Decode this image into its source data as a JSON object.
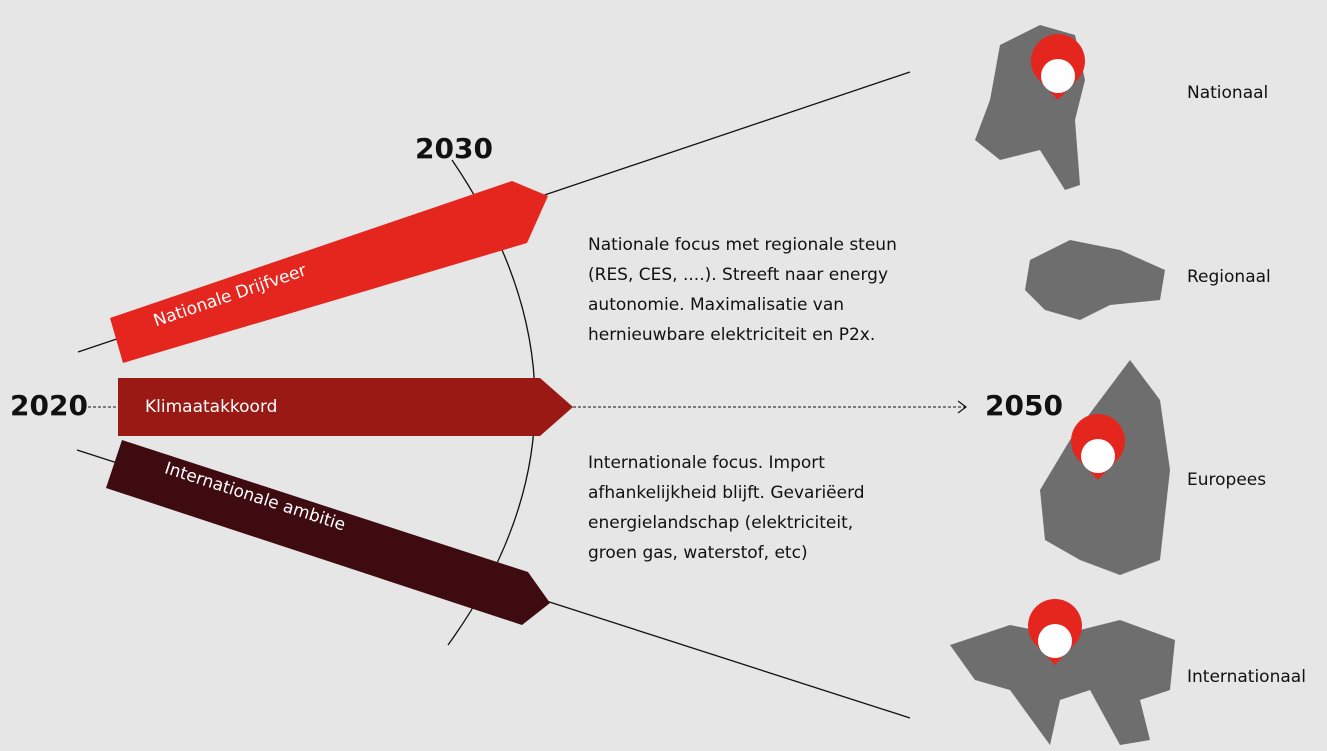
{
  "years": {
    "start": "2020",
    "mid": "2030",
    "end": "2050"
  },
  "arrows": [
    {
      "label": "Nationale Drijfveer"
    },
    {
      "label": "Klimaatakkoord"
    },
    {
      "label": "Internationale ambitie"
    }
  ],
  "descriptions": [
    {
      "lines": [
        "Nationale focus met regionale steun",
        "(RES, CES, ....). Streeft naar energy",
        "autonomie. Maximalisatie van",
        "hernieuwbare elektriciteit en P2x."
      ]
    },
    {
      "lines": [
        "Internationale focus. Import",
        "afhankelijkheid blijft. Gevariëerd",
        "energielandschap (elektriciteit,",
        "groen gas, waterstof, etc)"
      ]
    }
  ],
  "scopes": [
    {
      "label": "Nationaal"
    },
    {
      "label": "Regionaal"
    },
    {
      "label": "Europees"
    },
    {
      "label": "Internationaal"
    }
  ]
}
